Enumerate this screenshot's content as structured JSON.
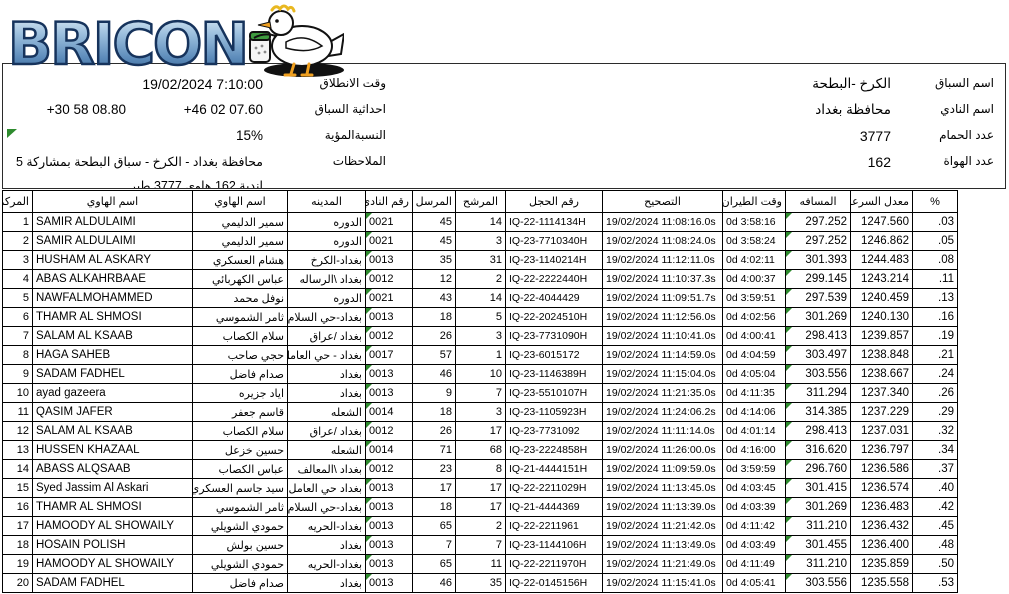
{
  "colors": {
    "excel_triangle_green": "#2e8b2e",
    "table_border": "#000000",
    "logo_blue_light": "#cfe3f2",
    "logo_blue_mid": "#6f9fc8",
    "logo_blue_dark": "#2a4f7e",
    "logo_outline": "#16335c"
  },
  "logo": {
    "brand": "BRICON",
    "mascot": "white-pigeon-holding-clocking-device"
  },
  "info": {
    "race_name_label": "اسم السباق",
    "race_name_value": "الكرخ -البطحة",
    "release_time_label": "وقت الانطلاق",
    "release_time_value": "19/02/2024 7:10:00",
    "club_name_label": "اسم النادي",
    "club_name_value": "محافظة بغداد",
    "coordinates_label": "احداثية السباق",
    "coordinate_longitude": "+46 02 07.60",
    "coordinate_latitude": "+30 58 08.80",
    "pigeon_count_label": "عدد الحمام",
    "pigeon_count_value": "3777",
    "percentage_label": "النسبةالمؤية",
    "percentage_value": "15%",
    "fancier_count_label": "عدد الهواة",
    "fancier_count_value": "162",
    "notes_label": "الملاحظات",
    "notes_value": "محافظة بغداد - الكرخ - سباق البطحة بمشاركة 5",
    "notes_value_line2_clipped": "اندية 162 هاوي 3777 طير"
  },
  "table": {
    "columns": [
      {
        "key": "rank",
        "label": "المركز"
      },
      {
        "key": "name_en",
        "label": "اسم الهاوي"
      },
      {
        "key": "name_ar",
        "label": "اسم الهاوي"
      },
      {
        "key": "city",
        "label": "المدينه"
      },
      {
        "key": "club",
        "label": "رقم النادي"
      },
      {
        "key": "sent",
        "label": "المرسل"
      },
      {
        "key": "nominated",
        "label": "المرشح"
      },
      {
        "key": "ring",
        "label": "رقم الحجل"
      },
      {
        "key": "correction",
        "label": "التصحيح"
      },
      {
        "key": "flight_time",
        "label": "وقت الطيران"
      },
      {
        "key": "distance",
        "label": "المسافه"
      },
      {
        "key": "speed",
        "label": "معدل السرعة"
      },
      {
        "key": "pct",
        "label": "%"
      }
    ],
    "rows": [
      {
        "rank": "1",
        "name_en": "SAMIR ALDULAIMI",
        "name_ar": "سمير الدليمي",
        "city": "الدوره",
        "club": "0021",
        "sent": "45",
        "nominated": "14",
        "ring": "IQ-22-1114134H",
        "correction": "19/02/2024 11:08:16.0s",
        "flight_time": "0d 3:58:16",
        "distance": "297.252",
        "speed": "1247.560",
        "pct": ".03"
      },
      {
        "rank": "2",
        "name_en": "SAMIR ALDULAIMI",
        "name_ar": "سمير الدليمي",
        "city": "الدوره",
        "club": "0021",
        "sent": "45",
        "nominated": "3",
        "ring": "IQ-23-7710340H",
        "correction": "19/02/2024 11:08:24.0s",
        "flight_time": "0d 3:58:24",
        "distance": "297.252",
        "speed": "1246.862",
        "pct": ".05"
      },
      {
        "rank": "3",
        "name_en": "HUSHAM AL ASKARY",
        "name_ar": "هشام العسكري",
        "city": "بغداد-الكرخ",
        "club": "0013",
        "sent": "35",
        "nominated": "31",
        "ring": "IQ-23-1140214H",
        "correction": "19/02/2024 11:12:11.0s",
        "flight_time": "0d 4:02:11",
        "distance": "301.393",
        "speed": "1244.483",
        "pct": ".08"
      },
      {
        "rank": "4",
        "name_en": "ABAS ALKAHRBAAE",
        "name_ar": "عباس الكهربائي",
        "city": "بغداد \\الرساله",
        "club": "0012",
        "sent": "12",
        "nominated": "2",
        "ring": "IQ-22-2222440H",
        "correction": "19/02/2024 11:10:37.3s",
        "flight_time": "0d 4:00:37",
        "distance": "299.145",
        "speed": "1243.214",
        "pct": ".11"
      },
      {
        "rank": "5",
        "name_en": "NAWFALMOHAMMED",
        "name_ar": "نوفل محمد",
        "city": "الدوره",
        "club": "0021",
        "sent": "43",
        "nominated": "14",
        "ring": "IQ-22-4044429",
        "correction": "19/02/2024 11:09:51.7s",
        "flight_time": "0d 3:59:51",
        "distance": "297.539",
        "speed": "1240.459",
        "pct": ".13"
      },
      {
        "rank": "6",
        "name_en": "THAMR AL SHMOSI",
        "name_ar": "ثامر الشموسي",
        "city": "بغداد-حي السلام",
        "club": "0013",
        "sent": "18",
        "nominated": "5",
        "ring": "IQ-22-2024510H",
        "correction": "19/02/2024 11:12:56.0s",
        "flight_time": "0d 4:02:56",
        "distance": "301.269",
        "speed": "1240.130",
        "pct": ".16"
      },
      {
        "rank": "7",
        "name_en": "SALAM AL KSAAB",
        "name_ar": "سلام الكصاب",
        "city": "بغداد /عراق",
        "club": "0012",
        "sent": "26",
        "nominated": "3",
        "ring": "IQ-23-7731090H",
        "correction": "19/02/2024 11:10:41.0s",
        "flight_time": "0d 4:00:41",
        "distance": "298.413",
        "speed": "1239.857",
        "pct": ".19"
      },
      {
        "rank": "8",
        "name_en": "HAGA SAHEB",
        "name_ar": "حجي صاحب",
        "city": "بغداد - حي العامل",
        "club": "0017",
        "sent": "57",
        "nominated": "1",
        "ring": "IQ-23-6015172",
        "correction": "19/02/2024 11:14:59.0s",
        "flight_time": "0d 4:04:59",
        "distance": "303.497",
        "speed": "1238.848",
        "pct": ".21"
      },
      {
        "rank": "9",
        "name_en": "SADAM FADHEL",
        "name_ar": "صدام فاضل",
        "city": "بغداد",
        "club": "0013",
        "sent": "46",
        "nominated": "10",
        "ring": "IQ-23-1146389H",
        "correction": "19/02/2024 11:15:04.0s",
        "flight_time": "0d 4:05:04",
        "distance": "303.556",
        "speed": "1238.667",
        "pct": ".24"
      },
      {
        "rank": "10",
        "name_en": "ayad gazeera",
        "name_ar": "اياد جزيره",
        "city": "بغداد",
        "club": "0013",
        "sent": "9",
        "nominated": "7",
        "ring": "IQ-23-5510107H",
        "correction": "19/02/2024 11:21:35.0s",
        "flight_time": "0d 4:11:35",
        "distance": "311.294",
        "speed": "1237.340",
        "pct": ".26"
      },
      {
        "rank": "11",
        "name_en": "QASIM JAFER",
        "name_ar": "قاسم جعفر",
        "city": "الشعله",
        "club": "0014",
        "sent": "18",
        "nominated": "3",
        "ring": "IQ-23-1105923H",
        "correction": "19/02/2024 11:24:06.2s",
        "flight_time": "0d 4:14:06",
        "distance": "314.385",
        "speed": "1237.229",
        "pct": ".29"
      },
      {
        "rank": "12",
        "name_en": "SALAM AL KSAAB",
        "name_ar": "سلام الكصاب",
        "city": "بغداد /عراق",
        "club": "0012",
        "sent": "26",
        "nominated": "17",
        "ring": "IQ-23-7731092",
        "correction": "19/02/2024 11:11:14.0s",
        "flight_time": "0d 4:01:14",
        "distance": "298.413",
        "speed": "1237.031",
        "pct": ".32"
      },
      {
        "rank": "13",
        "name_en": "HUSSEN KHAZAAL",
        "name_ar": "حسين خزعل",
        "city": "الشعله",
        "club": "0014",
        "sent": "71",
        "nominated": "68",
        "ring": "IQ-23-2224858H",
        "correction": "19/02/2024 11:26:00.0s",
        "flight_time": "0d 4:16:00",
        "distance": "316.620",
        "speed": "1236.797",
        "pct": ".34"
      },
      {
        "rank": "14",
        "name_en": "ABASS ALQSAAB",
        "name_ar": "عباس الكصاب",
        "city": "بغداد \\المعالف",
        "club": "0012",
        "sent": "23",
        "nominated": "8",
        "ring": "IQ-21-4444151H",
        "correction": "19/02/2024 11:09:59.0s",
        "flight_time": "0d 3:59:59",
        "distance": "296.760",
        "speed": "1236.586",
        "pct": ".37"
      },
      {
        "rank": "15",
        "name_en": "Syed Jassim Al Askari",
        "name_ar": "سيد جاسم العسكري",
        "city": "بغداد حي العامل",
        "club": "0013",
        "sent": "17",
        "nominated": "17",
        "ring": "IQ-22-2211029H",
        "correction": "19/02/2024 11:13:45.0s",
        "flight_time": "0d 4:03:45",
        "distance": "301.415",
        "speed": "1236.574",
        "pct": ".40"
      },
      {
        "rank": "16",
        "name_en": "THAMR AL SHMOSI",
        "name_ar": "ثامر الشموسي",
        "city": "بغداد-حي السلام",
        "club": "0013",
        "sent": "18",
        "nominated": "17",
        "ring": "IQ-21-4444369",
        "correction": "19/02/2024 11:13:39.0s",
        "flight_time": "0d 4:03:39",
        "distance": "301.269",
        "speed": "1236.483",
        "pct": ".42"
      },
      {
        "rank": "17",
        "name_en": "HAMOODY AL SHOWAILY",
        "name_ar": "حمودي الشويلي",
        "city": "بغداد-الحريه",
        "club": "0013",
        "sent": "65",
        "nominated": "2",
        "ring": "IQ-22-2211961",
        "correction": "19/02/2024 11:21:42.0s",
        "flight_time": "0d 4:11:42",
        "distance": "311.210",
        "speed": "1236.432",
        "pct": ".45"
      },
      {
        "rank": "18",
        "name_en": "HOSAIN POLISH",
        "name_ar": "حسين بولش",
        "city": "بغداد",
        "club": "0013",
        "sent": "7",
        "nominated": "7",
        "ring": "IQ-23-1144106H",
        "correction": "19/02/2024 11:13:49.0s",
        "flight_time": "0d 4:03:49",
        "distance": "301.455",
        "speed": "1236.400",
        "pct": ".48"
      },
      {
        "rank": "19",
        "name_en": "HAMOODY AL SHOWAILY",
        "name_ar": "حمودي الشويلي",
        "city": "بغداد-الحريه",
        "club": "0013",
        "sent": "65",
        "nominated": "11",
        "ring": "IQ-22-2211970H",
        "correction": "19/02/2024 11:21:49.0s",
        "flight_time": "0d 4:11:49",
        "distance": "311.210",
        "speed": "1235.859",
        "pct": ".50"
      },
      {
        "rank": "20",
        "name_en": "SADAM FADHEL",
        "name_ar": "صدام فاضل",
        "city": "بغداد",
        "club": "0013",
        "sent": "46",
        "nominated": "35",
        "ring": "IQ-22-0145156H",
        "correction": "19/02/2024 11:15:41.0s",
        "flight_time": "0d 4:05:41",
        "distance": "303.556",
        "speed": "1235.558",
        "pct": ".53"
      }
    ]
  }
}
